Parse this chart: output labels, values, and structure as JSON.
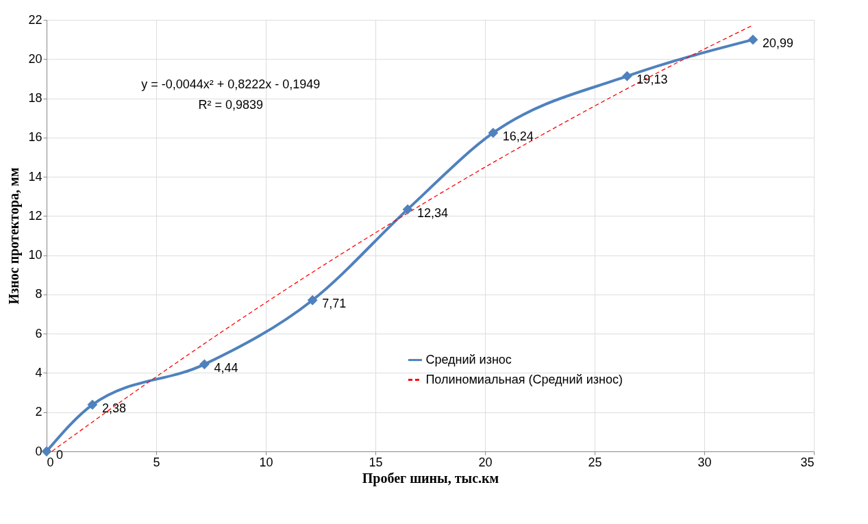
{
  "chart_data": {
    "type": "line",
    "xlabel": "Пробег шины, тыс.км",
    "ylabel": "Износ протектора, мм",
    "xlim": [
      0,
      35
    ],
    "xticks": [
      0,
      5,
      10,
      15,
      20,
      25,
      30,
      35
    ],
    "ylim": [
      0,
      22
    ],
    "yticks": [
      0,
      2,
      4,
      6,
      8,
      10,
      12,
      14,
      16,
      18,
      20,
      22
    ],
    "grid": true,
    "legend": "bottom right",
    "annotations": [
      "y = -0,0044x² + 0,8222x - 0,1949",
      "R² = 0,9839"
    ],
    "series": [
      {
        "name": "Средний износ",
        "color": "#4f81bd",
        "marker": "diamond",
        "line_style": "solid",
        "x": [
          0,
          2.09,
          7.2,
          12.13,
          16.47,
          20.37,
          26.48,
          32.22
        ],
        "values": [
          0,
          2.38,
          4.44,
          7.71,
          12.34,
          16.24,
          19.13,
          20.99
        ],
        "value_labels": [
          "0",
          "2,38",
          "4,44",
          "7,71",
          "12,34",
          "16,24",
          "19,13",
          "20,99"
        ]
      },
      {
        "name": "Полиномиальная (Средний износ)",
        "type": "line",
        "color": "#ff0000",
        "marker": "none",
        "line_style": "dashed",
        "x": [
          0.25,
          4,
          8,
          12,
          16,
          20,
          24,
          28,
          32.2
        ],
        "values": [
          0.01,
          3.02,
          6.1,
          9.04,
          11.83,
          14.49,
          17.0,
          19.38,
          21.72
        ]
      }
    ]
  }
}
